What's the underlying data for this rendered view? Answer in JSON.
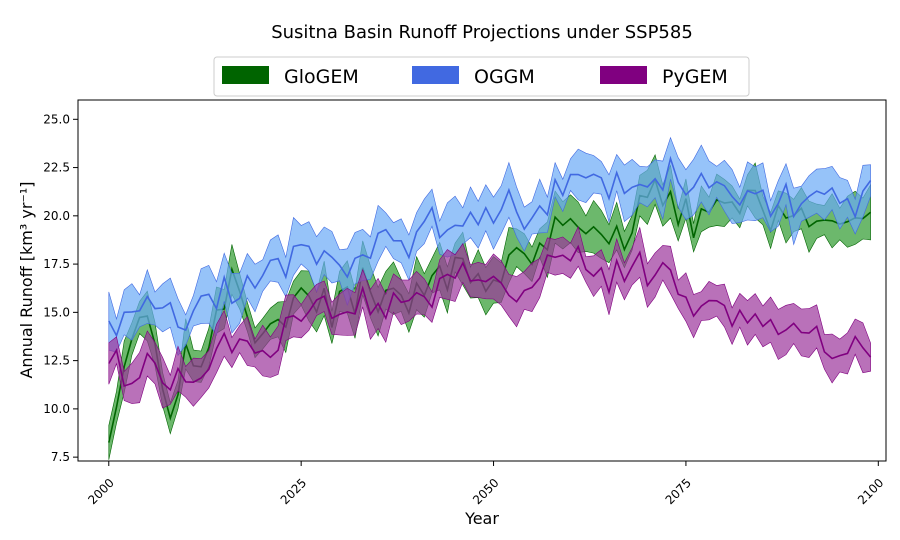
{
  "chart_data": {
    "type": "area",
    "title": "Susitna Basin Runoff Projections under SSP585",
    "xlabel": "Year",
    "ylabel": "Annual Runoff [km³ yr⁻¹]",
    "xlim": [
      1996,
      2101
    ],
    "ylim": [
      7.3,
      26.0
    ],
    "xticks": [
      2000,
      2025,
      2050,
      2075,
      2100
    ],
    "yticks": [
      7.5,
      10.0,
      12.5,
      15.0,
      17.5,
      20.0,
      22.5,
      25.0
    ],
    "xtick_labels": [
      "2000",
      "2025",
      "2050",
      "2075",
      "2100"
    ],
    "ytick_labels": [
      "7.5",
      "10.0",
      "12.5",
      "15.0",
      "17.5",
      "20.0",
      "22.5",
      "25.0"
    ],
    "grid": false,
    "legend_position": "top-center",
    "series": [
      {
        "name": "GloGEM",
        "color": "#006400",
        "fill": "#2e9a2e",
        "x_start": 2000,
        "x_end": 2099,
        "points": [
          [
            2000,
            9.0
          ],
          [
            2002,
            12.8
          ],
          [
            2004,
            15.2
          ],
          [
            2006,
            13.5
          ],
          [
            2008,
            10.0
          ],
          [
            2010,
            14.0
          ],
          [
            2012,
            11.5
          ],
          [
            2014,
            14.2
          ],
          [
            2016,
            17.5
          ],
          [
            2018,
            14.0
          ],
          [
            2020,
            13.5
          ],
          [
            2022,
            14.5
          ],
          [
            2025,
            16.0
          ],
          [
            2028,
            15.3
          ],
          [
            2030,
            15.5
          ],
          [
            2033,
            16.2
          ],
          [
            2035,
            15.8
          ],
          [
            2038,
            15.5
          ],
          [
            2040,
            16.3
          ],
          [
            2042,
            16.5
          ],
          [
            2045,
            16.8
          ],
          [
            2048,
            17.1
          ],
          [
            2050,
            17.3
          ],
          [
            2053,
            17.4
          ],
          [
            2055,
            17.8
          ],
          [
            2057,
            18.5
          ],
          [
            2059,
            20.0
          ],
          [
            2061,
            19.5
          ],
          [
            2063,
            19.3
          ],
          [
            2065,
            19.0
          ],
          [
            2067,
            18.8
          ],
          [
            2069,
            20.5
          ],
          [
            2071,
            21.2
          ],
          [
            2073,
            20.4
          ],
          [
            2075,
            19.8
          ],
          [
            2078,
            20.2
          ],
          [
            2080,
            20.1
          ],
          [
            2083,
            20.3
          ],
          [
            2085,
            19.9
          ],
          [
            2088,
            20.4
          ],
          [
            2090,
            19.7
          ],
          [
            2093,
            19.9
          ],
          [
            2096,
            19.5
          ],
          [
            2099,
            20.3
          ]
        ],
        "spread": 1.2
      },
      {
        "name": "OGGM",
        "color": "#4169e1",
        "fill": "#6aaaf6",
        "x_start": 2000,
        "x_end": 2099,
        "points": [
          [
            2000,
            14.5
          ],
          [
            2003,
            14.9
          ],
          [
            2005,
            15.2
          ],
          [
            2008,
            14.6
          ],
          [
            2010,
            14.5
          ],
          [
            2013,
            15.3
          ],
          [
            2016,
            16.2
          ],
          [
            2018,
            16.5
          ],
          [
            2020,
            16.8
          ],
          [
            2023,
            17.5
          ],
          [
            2025,
            18.0
          ],
          [
            2028,
            17.7
          ],
          [
            2030,
            17.8
          ],
          [
            2033,
            18.4
          ],
          [
            2035,
            18.5
          ],
          [
            2038,
            18.6
          ],
          [
            2040,
            19.1
          ],
          [
            2043,
            19.6
          ],
          [
            2045,
            19.8
          ],
          [
            2048,
            19.9
          ],
          [
            2050,
            20.1
          ],
          [
            2053,
            20.5
          ],
          [
            2055,
            20.6
          ],
          [
            2058,
            21.3
          ],
          [
            2060,
            21.6
          ],
          [
            2063,
            21.8
          ],
          [
            2065,
            21.9
          ],
          [
            2068,
            22.1
          ],
          [
            2070,
            22.3
          ],
          [
            2073,
            22.0
          ],
          [
            2075,
            21.6
          ],
          [
            2078,
            21.7
          ],
          [
            2080,
            21.4
          ],
          [
            2083,
            21.1
          ],
          [
            2085,
            21.0
          ],
          [
            2088,
            20.9
          ],
          [
            2090,
            21.0
          ],
          [
            2093,
            20.8
          ],
          [
            2096,
            20.9
          ],
          [
            2099,
            21.0
          ]
        ],
        "spread": 1.3
      },
      {
        "name": "PyGEM",
        "color": "#800080",
        "fill": "#9b349b",
        "x_start": 2000,
        "x_end": 2099,
        "points": [
          [
            2000,
            12.3
          ],
          [
            2003,
            11.7
          ],
          [
            2005,
            12.1
          ],
          [
            2008,
            11.3
          ],
          [
            2010,
            11.6
          ],
          [
            2013,
            12.9
          ],
          [
            2015,
            13.2
          ],
          [
            2018,
            13.5
          ],
          [
            2020,
            13.2
          ],
          [
            2023,
            14.3
          ],
          [
            2025,
            14.8
          ],
          [
            2028,
            15.0
          ],
          [
            2030,
            15.2
          ],
          [
            2033,
            15.6
          ],
          [
            2035,
            15.3
          ],
          [
            2038,
            15.7
          ],
          [
            2040,
            16.1
          ],
          [
            2043,
            16.4
          ],
          [
            2045,
            16.6
          ],
          [
            2048,
            16.5
          ],
          [
            2050,
            16.4
          ],
          [
            2053,
            16.3
          ],
          [
            2055,
            16.6
          ],
          [
            2058,
            17.4
          ],
          [
            2060,
            17.5
          ],
          [
            2063,
            17.1
          ],
          [
            2065,
            16.8
          ],
          [
            2068,
            17.1
          ],
          [
            2070,
            17.3
          ],
          [
            2073,
            16.9
          ],
          [
            2075,
            16.1
          ],
          [
            2078,
            15.3
          ],
          [
            2080,
            14.8
          ],
          [
            2083,
            14.3
          ],
          [
            2085,
            14.0
          ],
          [
            2088,
            13.9
          ],
          [
            2090,
            13.6
          ],
          [
            2093,
            13.2
          ],
          [
            2096,
            13.1
          ],
          [
            2099,
            13.5
          ]
        ],
        "spread": 1.1
      }
    ]
  }
}
